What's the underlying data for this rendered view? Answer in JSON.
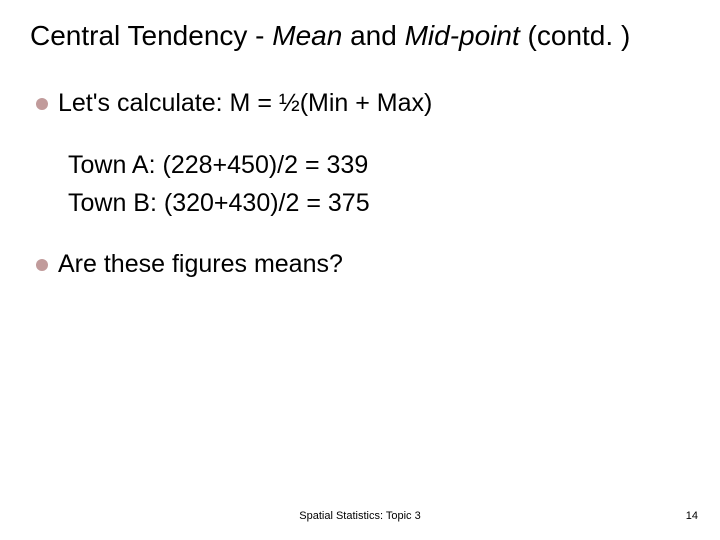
{
  "title": {
    "pre": "Central Tendency - ",
    "italic1": "Mean",
    "mid": " and ",
    "italic2": "Mid-point",
    "post": " (contd. )"
  },
  "bullets": {
    "b1_prefix": "Let's ",
    "b1_rest": "calculate:  M = ½(Min + Max)",
    "b2_prefix": "Are ",
    "b2_rest": "these figures means?"
  },
  "towns": {
    "a": "Town A: (228+450)/2 = 339",
    "b": "Town B: (320+430)/2 = 375"
  },
  "footer": {
    "center": "Spatial Statistics: Topic 3",
    "pagenum": "14"
  },
  "style": {
    "bullet_color": "#c19b9b",
    "title_fontsize": 28,
    "body_fontsize": 25,
    "footer_fontsize": 11,
    "background": "#ffffff",
    "text_color": "#000000"
  }
}
